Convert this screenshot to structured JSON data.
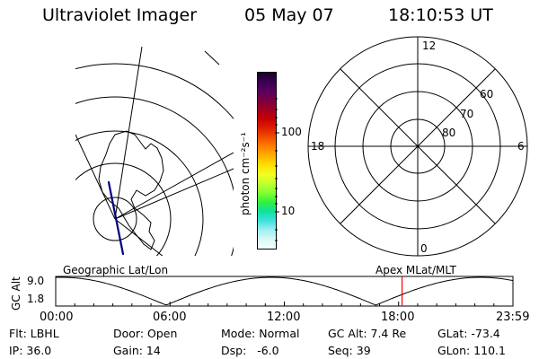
{
  "header": {
    "instrument": "Ultraviolet Imager",
    "date": "05 May 07",
    "time": "18:10:53 UT"
  },
  "colorbar": {
    "unit_label": "photon cm⁻²s⁻¹",
    "tick_100": "100",
    "tick_10": "10",
    "colors": [
      "#1a0030",
      "#3a0050",
      "#5a0060",
      "#7a0040",
      "#a00020",
      "#c80000",
      "#e02000",
      "#f05000",
      "#ff8000",
      "#ffb000",
      "#ffe000",
      "#f0ff20",
      "#c0ff30",
      "#80ff30",
      "#30f040",
      "#10e0a0",
      "#40e0e0",
      "#a0f0f0",
      "#d8f8f8",
      "#f4ffff"
    ]
  },
  "polar_plot": {
    "label_top": "12",
    "label_left": "18",
    "label_right": "6",
    "label_bottom": "0",
    "ring_60": "60",
    "ring_70": "70",
    "ring_80": "80"
  },
  "timeline": {
    "left_label": "Geographic Lat/Lon",
    "right_label": "Apex MLat/MLT",
    "axis_title": "GC Alt",
    "y_max": "9.0",
    "y_min": "1.8",
    "x_ticks": [
      "00:00",
      "06:00",
      "12:00",
      "18:00",
      "23:59"
    ],
    "marker_time_h": 18.18,
    "marker_color": "#ff0000"
  },
  "status": {
    "filter": "Flt: LBHL",
    "ip": "IP: 36.0",
    "door": "Door: Open",
    "gain": "Gain: 14",
    "mode": "Mode: Normal",
    "dsp": "Dsp:   -6.0",
    "gc_alt": "GC Alt: 7.4 Re",
    "seq": "Seq: 39",
    "glat": "GLat: -73.4",
    "glon": "GLon: 110.1"
  }
}
